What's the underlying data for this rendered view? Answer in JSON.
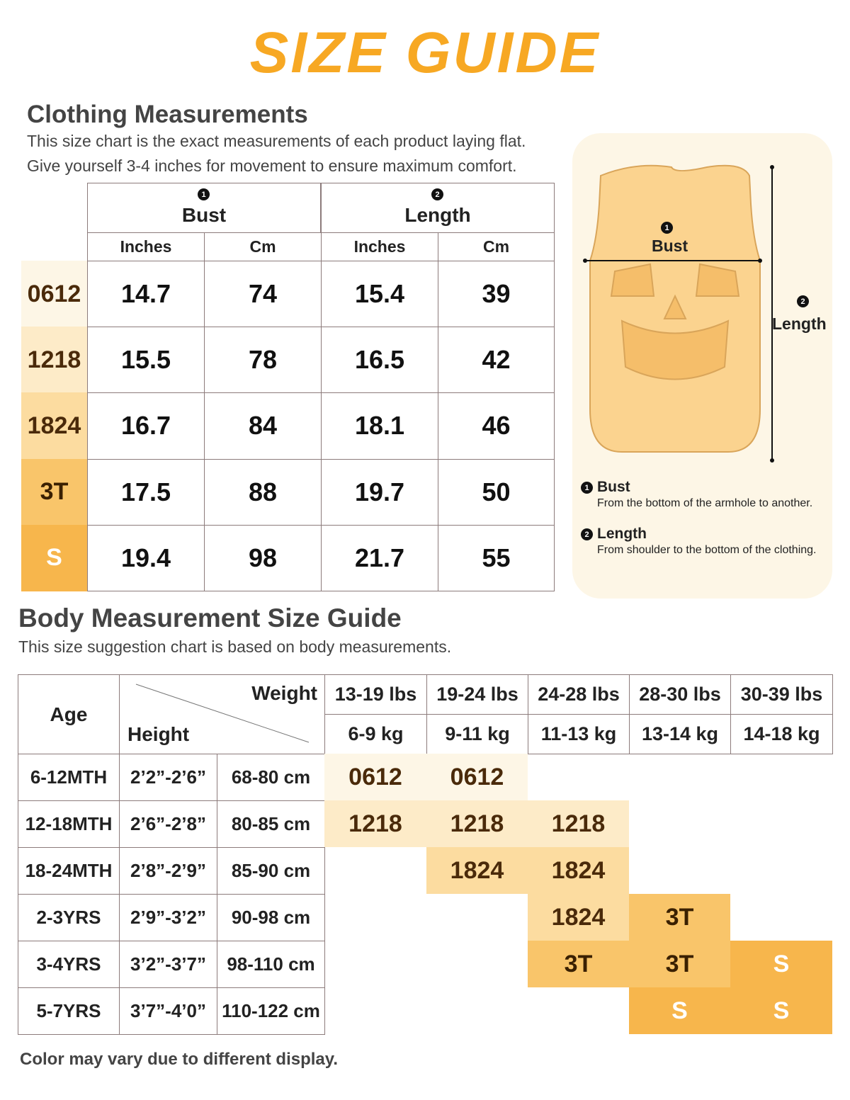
{
  "title": "SIZE GUIDE",
  "clothing": {
    "heading": "Clothing Measurements",
    "notes": [
      "This size chart is the exact measurements of each product laying flat.",
      "Give yourself 3-4 inches for movement to ensure maximum comfort."
    ],
    "groups": [
      {
        "marker": "1",
        "label": "Bust"
      },
      {
        "marker": "2",
        "label": "Length"
      }
    ],
    "units": [
      "Inches",
      "Cm",
      "Inches",
      "Cm"
    ],
    "rows": [
      {
        "size": "0612",
        "cells": [
          14.7,
          74,
          15.4,
          39
        ]
      },
      {
        "size": "1218",
        "cells": [
          15.5,
          78,
          16.5,
          42
        ]
      },
      {
        "size": "1824",
        "cells": [
          16.7,
          84,
          18.1,
          46
        ]
      },
      {
        "size": "3T",
        "cells": [
          17.5,
          88,
          19.7,
          50
        ]
      },
      {
        "size": "S",
        "cells": [
          19.4,
          98,
          21.7,
          55
        ]
      }
    ]
  },
  "diagram": {
    "bust": {
      "marker": "1",
      "label": "Bust"
    },
    "length": {
      "marker": "2",
      "label": "Length"
    },
    "legend": [
      {
        "marker": "1",
        "label": "Bust",
        "description": "From the bottom of the armhole to another."
      },
      {
        "marker": "2",
        "label": "Length",
        "description": "From shoulder to the bottom of the clothing."
      }
    ]
  },
  "body": {
    "heading": "Body Measurement Size Guide",
    "note": "This size suggestion chart is based on body measurements.",
    "header": {
      "age": "Age",
      "weight": "Weight",
      "height": "Height",
      "weights": [
        {
          "lbs": "13-19 lbs",
          "kg": "6-9 kg"
        },
        {
          "lbs": "19-24 lbs",
          "kg": "9-11 kg"
        },
        {
          "lbs": "24-28 lbs",
          "kg": "11-13 kg"
        },
        {
          "lbs": "28-30 lbs",
          "kg": "13-14 kg"
        },
        {
          "lbs": "30-39 lbs",
          "kg": "14-18 kg"
        }
      ]
    },
    "rows": [
      {
        "age": "6-12MTH",
        "height_ft": "2’2”-2’6”",
        "height_cm": "68-80 cm",
        "sizes": [
          "0612",
          "0612",
          null,
          null,
          null
        ]
      },
      {
        "age": "12-18MTH",
        "height_ft": "2’6”-2’8”",
        "height_cm": "80-85 cm",
        "sizes": [
          "1218",
          "1218",
          "1218",
          null,
          null
        ]
      },
      {
        "age": "18-24MTH",
        "height_ft": "2’8”-2’9”",
        "height_cm": "85-90 cm",
        "sizes": [
          null,
          "1824",
          "1824",
          null,
          null
        ]
      },
      {
        "age": "2-3YRS",
        "height_ft": "2’9”-3’2”",
        "height_cm": "90-98 cm",
        "sizes": [
          null,
          null,
          "1824",
          "3T",
          null
        ]
      },
      {
        "age": "3-4YRS",
        "height_ft": "3’2”-3’7”",
        "height_cm": "98-110 cm",
        "sizes": [
          null,
          null,
          "3T",
          "3T",
          "S"
        ]
      },
      {
        "age": "5-7YRS",
        "height_ft": "3’7”-4’0”",
        "height_cm": "110-122 cm",
        "sizes": [
          null,
          null,
          null,
          "S",
          "S"
        ]
      }
    ]
  },
  "footer": "Color may vary due to different display."
}
